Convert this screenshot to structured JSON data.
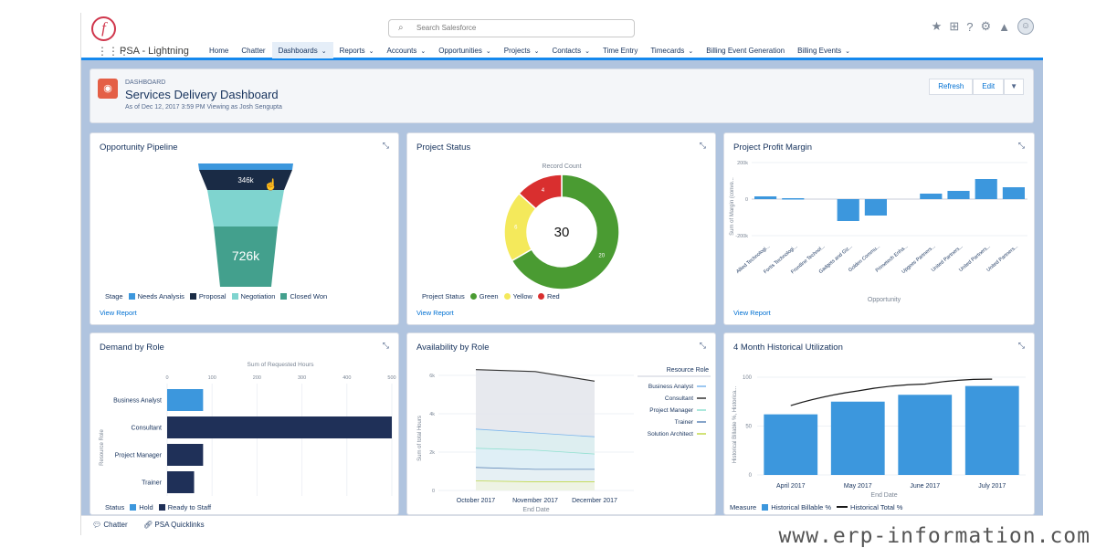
{
  "search": {
    "placeholder": "Search Salesforce"
  },
  "app": {
    "name": "PSA - Lightning"
  },
  "nav": {
    "items": [
      {
        "label": "Home",
        "dropdown": false,
        "active": false
      },
      {
        "label": "Chatter",
        "dropdown": false,
        "active": false
      },
      {
        "label": "Dashboards",
        "dropdown": true,
        "active": true
      },
      {
        "label": "Reports",
        "dropdown": true,
        "active": false
      },
      {
        "label": "Accounts",
        "dropdown": true,
        "active": false
      },
      {
        "label": "Opportunities",
        "dropdown": true,
        "active": false
      },
      {
        "label": "Projects",
        "dropdown": true,
        "active": false
      },
      {
        "label": "Contacts",
        "dropdown": true,
        "active": false
      },
      {
        "label": "Time Entry",
        "dropdown": false,
        "active": false
      },
      {
        "label": "Timecards",
        "dropdown": true,
        "active": false
      },
      {
        "label": "Billing Event Generation",
        "dropdown": false,
        "active": false
      },
      {
        "label": "Billing Events",
        "dropdown": true,
        "active": false
      }
    ]
  },
  "header": {
    "supertitle": "DASHBOARD",
    "title": "Services Delivery Dashboard",
    "subtitle": "As of Dec 12, 2017 3:59 PM Viewing as Josh Sengupta",
    "refresh_label": "Refresh",
    "edit_label": "Edit"
  },
  "colors": {
    "accent": "#1589ee",
    "brand": "#d0364c",
    "bar": "#3c97dd",
    "navy": "#1f3058"
  },
  "cards": {
    "pipeline": {
      "title": "Opportunity Pipeline",
      "view_report": "View Report",
      "legend_title": "Stage",
      "legend": [
        {
          "label": "Needs Analysis",
          "color": "#3c97dd"
        },
        {
          "label": "Proposal",
          "color": "#1a2b45"
        },
        {
          "label": "Negotiation",
          "color": "#7fd4cf"
        },
        {
          "label": "Closed Won",
          "color": "#43a08d"
        }
      ],
      "chart_data": {
        "type": "funnel",
        "stages": [
          "Needs Analysis",
          "Proposal",
          "Negotiation",
          "Closed Won"
        ],
        "labels": [
          "",
          "346k",
          "",
          "726k"
        ]
      }
    },
    "status": {
      "title": "Project Status",
      "view_report": "View Report",
      "chart_label": "Record Count",
      "total": "30",
      "legend_title": "Project Status",
      "legend": [
        {
          "label": "Green",
          "color": "#4a9b32"
        },
        {
          "label": "Yellow",
          "color": "#f4e95b"
        },
        {
          "label": "Red",
          "color": "#d92f2f"
        }
      ],
      "chart_data": {
        "type": "donut",
        "categories": [
          "Green",
          "Yellow",
          "Red"
        ],
        "values": [
          20,
          6,
          4
        ],
        "colors": [
          "#4a9b32",
          "#f4e95b",
          "#d92f2f"
        ],
        "total": 30
      }
    },
    "profit": {
      "title": "Project Profit Margin",
      "view_report": "View Report",
      "ylabel": "Sum of Margin (conve...",
      "xlabel": "Opportunity",
      "yticks": [
        "200k",
        "0",
        "-200k"
      ],
      "chart_data": {
        "type": "bar",
        "categories": [
          "Allied Technologi...",
          "Fortis Technologi...",
          "Frontline Technol...",
          "Gadgets and Giz...",
          "Golden Commu...",
          "Primetech Enha...",
          "Upgees Partners...",
          "United Partners...",
          "United Partners...",
          "United Partners..."
        ],
        "values": [
          15,
          5,
          0,
          -120,
          -90,
          0,
          30,
          45,
          110,
          65
        ],
        "ylim": [
          -200,
          200
        ]
      }
    },
    "demand": {
      "title": "Demand by Role",
      "view_report": "View Report",
      "axis_title": "Sum of Requested Hours",
      "ylabel": "Resource Role",
      "xticks": [
        "0",
        "100",
        "200",
        "300",
        "400",
        "500"
      ],
      "legend_title": "Status",
      "legend": [
        {
          "label": "Hold",
          "color": "#3c97dd"
        },
        {
          "label": "Ready to Staff",
          "color": "#1f3058"
        }
      ],
      "chart_data": {
        "type": "bar",
        "orientation": "horizontal",
        "categories": [
          "Business Analyst",
          "Consultant",
          "Project Manager",
          "Trainer"
        ],
        "series": [
          {
            "name": "Hold",
            "values": [
              80,
              0,
              0,
              0
            ]
          },
          {
            "name": "Ready to Staff",
            "values": [
              0,
              500,
              80,
              60
            ]
          }
        ],
        "xlim": [
          0,
          500
        ]
      }
    },
    "availability": {
      "title": "Availability by Role",
      "view_report": "View Report",
      "ylabel": "Sum of total Hours",
      "xlabel": "End Date",
      "yticks": [
        "0",
        "2k",
        "4k",
        "6k"
      ],
      "legend_title": "Resource Role",
      "legend": [
        {
          "label": "Business Analyst",
          "color": "#7cb5ec"
        },
        {
          "label": "Consultant",
          "color": "#333333"
        },
        {
          "label": "Project Manager",
          "color": "#90e0d0"
        },
        {
          "label": "Trainer",
          "color": "#5f87b8"
        },
        {
          "label": "Solution Architect",
          "color": "#c2d94a"
        }
      ],
      "chart_data": {
        "type": "area",
        "x": [
          "October 2017",
          "November 2017",
          "December 2017"
        ],
        "series": [
          {
            "name": "Consultant",
            "values": [
              6300,
              6200,
              5700
            ]
          },
          {
            "name": "Business Analyst",
            "values": [
              3200,
              3000,
              2800
            ]
          },
          {
            "name": "Project Manager",
            "values": [
              2200,
              2100,
              1900
            ]
          },
          {
            "name": "Trainer",
            "values": [
              1200,
              1100,
              1100
            ]
          },
          {
            "name": "Solution Architect",
            "values": [
              500,
              450,
              450
            ]
          }
        ],
        "ylim": [
          0,
          6000
        ]
      }
    },
    "utilization": {
      "title": "4 Month Historical Utilization",
      "view_report": "View Report",
      "ylabel": "Historical Billable %, Historica...",
      "xlabel": "End Date",
      "yticks": [
        "100",
        "50",
        "0"
      ],
      "legend_title": "Measure",
      "legend": [
        {
          "label": "Historical Billable %",
          "color": "#3c97dd",
          "kind": "bar"
        },
        {
          "label": "Historical Total %",
          "color": "#1a1a1a",
          "kind": "line"
        }
      ],
      "chart_data": {
        "type": "bar",
        "categories": [
          "April 2017",
          "May 2017",
          "June 2017",
          "July 2017"
        ],
        "series": [
          {
            "name": "Historical Billable %",
            "values": [
              62,
              75,
              82,
              91
            ]
          },
          {
            "name": "Historical Total %",
            "values": [
              71,
              86,
              93,
              98
            ]
          }
        ],
        "ylim": [
          0,
          100
        ]
      }
    }
  },
  "footer": {
    "chatter_label": "Chatter",
    "quicklinks_label": "PSA Quicklinks"
  },
  "watermark": "www.erp-information.com"
}
